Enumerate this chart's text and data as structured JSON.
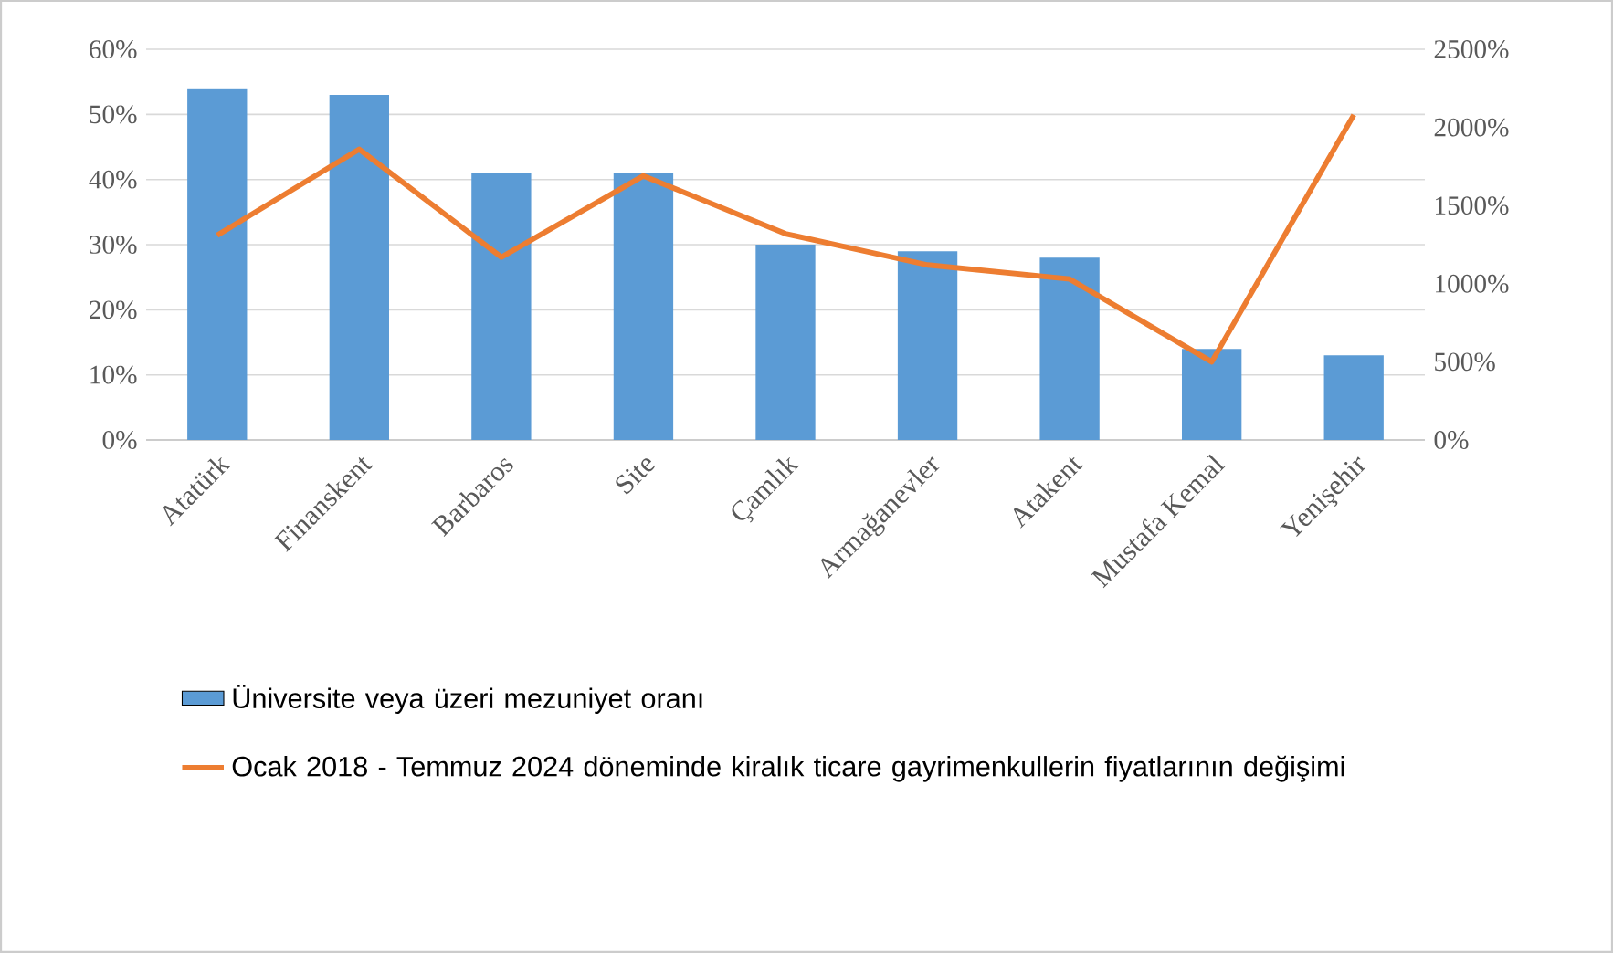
{
  "chart_data": {
    "type": "bar",
    "categories": [
      "Atatürk",
      "Finanskent",
      "Barbaros",
      "Site",
      "Çamlık",
      "Armağanevler",
      "Atakent",
      "Mustafa Kemal",
      "Yenişehir"
    ],
    "series": [
      {
        "name": "Üniversite veya üzeri mezuniyet oranı",
        "color": "#5b9bd5",
        "values": [
          54,
          53,
          41,
          41,
          30,
          29,
          28,
          14,
          13
        ]
      },
      {
        "name": "Ocak 2018 - Temmuz 2024 döneminde kiralık ticare gayrimenkullerin fiyatlarının değişimi",
        "type": "line",
        "axis": "y2",
        "color": "#ed7d31",
        "values": [
          1310,
          1860,
          1170,
          1690,
          1320,
          1120,
          1030,
          500,
          2080
        ]
      }
    ],
    "ylim": [
      0,
      60
    ],
    "yticks": [
      {
        "value": 0,
        "label": "0%"
      },
      {
        "value": 10,
        "label": "10%"
      },
      {
        "value": 20,
        "label": "20%"
      },
      {
        "value": 30,
        "label": "30%"
      },
      {
        "value": 40,
        "label": "40%"
      },
      {
        "value": 50,
        "label": "50%"
      },
      {
        "value": 60,
        "label": "60%"
      }
    ],
    "y2lim": [
      0,
      2500
    ],
    "y2ticks": [
      {
        "value": 0,
        "label": "0%"
      },
      {
        "value": 500,
        "label": "500%"
      },
      {
        "value": 1000,
        "label": "1000%"
      },
      {
        "value": 1500,
        "label": "1500%"
      },
      {
        "value": 2000,
        "label": "2000%"
      },
      {
        "value": 2500,
        "label": "2500%"
      }
    ],
    "grid": "y",
    "legend": "bottom"
  }
}
